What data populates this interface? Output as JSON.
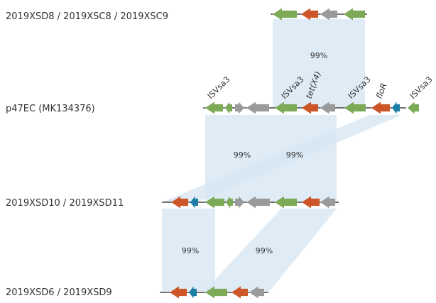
{
  "colors": {
    "mobile_element": "#7daa57",
    "resistance": "#cc5627",
    "hypothetical": "#9a9a9a",
    "regulatory": "#1c7ea4",
    "homology": "#d4e6f3",
    "backbone": "#222222"
  },
  "tracks": [
    {
      "id": "t1",
      "label": "2019XSD8 / 2019XSC8 / 2019XSC9"
    },
    {
      "id": "t2",
      "label": "p47EC (MK134376)"
    },
    {
      "id": "t3",
      "label": "2019XSD10 / 2019XSD11"
    },
    {
      "id": "t4",
      "label": "2019XSD6 / 2019XSD9"
    }
  ],
  "gene_labels": [
    "ISVsa3",
    "ISVsa3",
    "tet(X4)",
    "ISVsa3",
    "floR",
    "ISVsa3"
  ],
  "identities": [
    "99%",
    "99%",
    "99%",
    "99%",
    "99%"
  ]
}
